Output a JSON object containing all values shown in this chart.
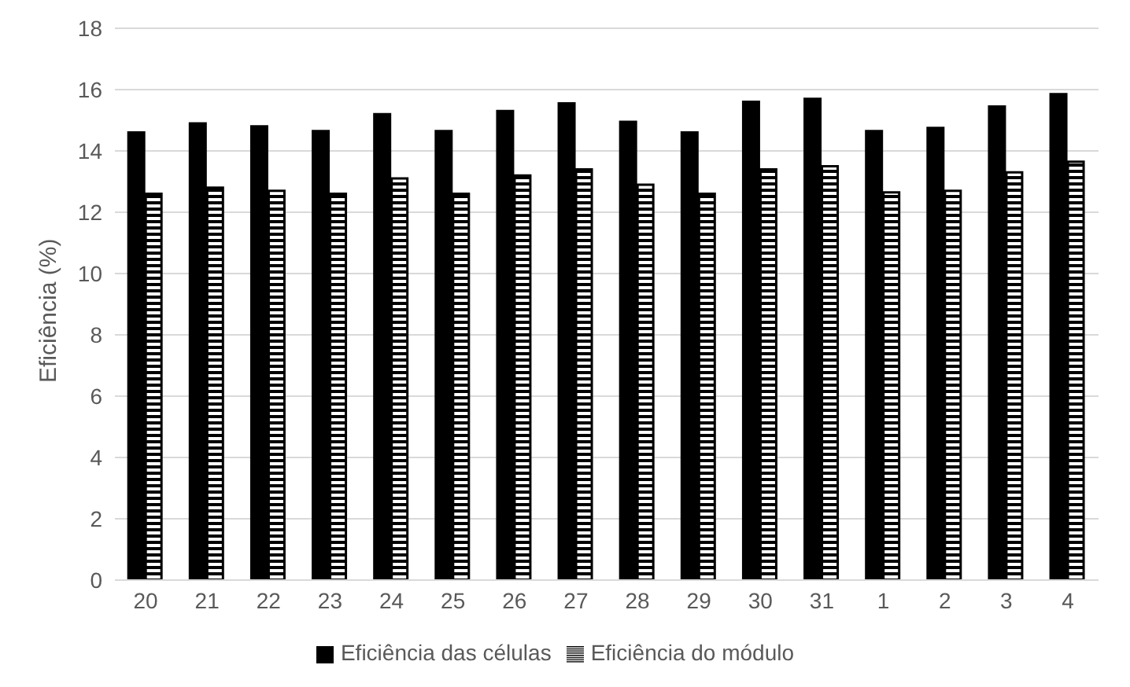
{
  "chart_data": {
    "type": "bar",
    "ylabel": "Eficiência (%)",
    "categories": [
      "20",
      "21",
      "22",
      "23",
      "24",
      "25",
      "26",
      "27",
      "28",
      "29",
      "30",
      "31",
      "1",
      "2",
      "3",
      "4"
    ],
    "series": [
      {
        "name": "Eficiência das células",
        "color": "#000000",
        "values": [
          14.6,
          14.9,
          14.8,
          14.65,
          15.2,
          14.65,
          15.3,
          15.55,
          14.95,
          14.6,
          15.6,
          15.7,
          14.65,
          14.75,
          15.45,
          15.85
        ]
      },
      {
        "name": "Eficiência do módulo",
        "color": "#000000",
        "values": [
          12.6,
          12.8,
          12.7,
          12.6,
          13.1,
          12.6,
          13.2,
          13.4,
          12.9,
          12.6,
          13.4,
          13.5,
          12.65,
          12.7,
          13.3,
          13.65
        ]
      }
    ],
    "ylim": [
      0,
      18
    ],
    "yticks": [
      0,
      2,
      4,
      6,
      8,
      10,
      12,
      14,
      16,
      18
    ],
    "grid": "y",
    "legend": "bottom"
  }
}
